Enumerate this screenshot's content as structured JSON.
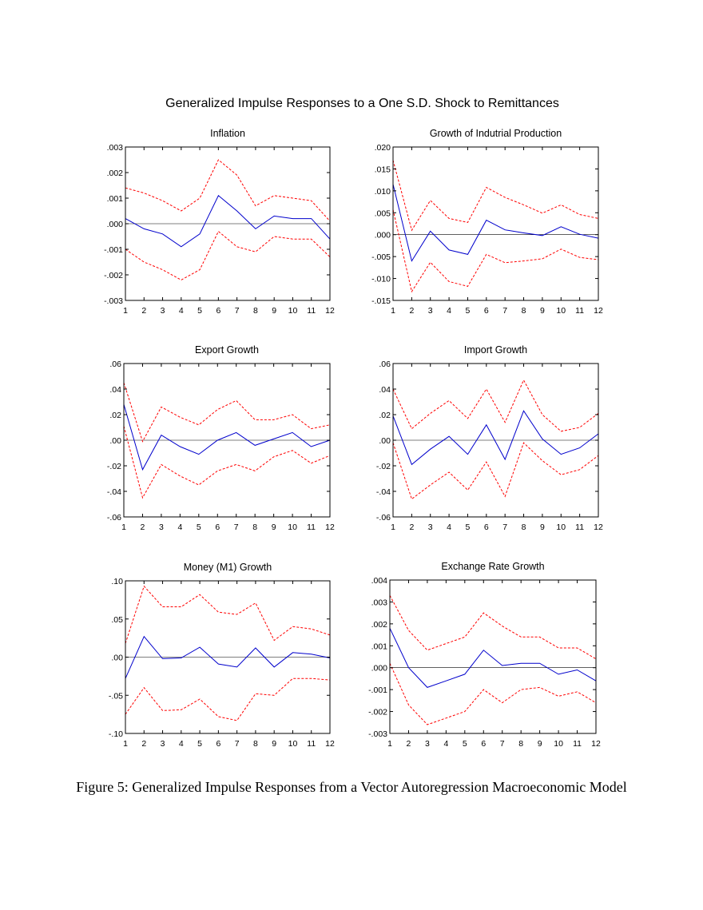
{
  "figure": {
    "title": "Generalized Impulse Responses to a One S.D. Shock to Remittances",
    "caption": "Figure 5: Generalized Impulse Responses from a Vector Autoregression Macroeconomic Model"
  },
  "chart_data": [
    {
      "type": "line",
      "title": "Inflation",
      "x": [
        1,
        2,
        3,
        4,
        5,
        6,
        7,
        8,
        9,
        10,
        11,
        12
      ],
      "ylim": [
        -0.003,
        0.003
      ],
      "yticks": [
        0.003,
        0.002,
        0.001,
        0.0,
        -0.001,
        -0.002,
        -0.003
      ],
      "ytick_labels": [
        ".003",
        ".002",
        ".001",
        ".000",
        "-.001",
        "-.002",
        "-.003"
      ],
      "series": [
        {
          "role": "response",
          "color": "#0000cc",
          "style": "solid",
          "values": [
            0.0002,
            -0.0002,
            -0.0004,
            -0.0009,
            -0.0004,
            0.0011,
            0.0005,
            -0.0002,
            0.0003,
            0.0002,
            0.0002,
            -0.0006
          ]
        },
        {
          "role": "upper",
          "color": "#ff0000",
          "style": "dashed",
          "values": [
            0.0014,
            0.0012,
            0.0009,
            0.0005,
            0.001,
            0.0025,
            0.0019,
            0.0007,
            0.0011,
            0.001,
            0.0009,
            0.0001
          ]
        },
        {
          "role": "lower",
          "color": "#ff0000",
          "style": "dashed",
          "values": [
            -0.001,
            -0.0015,
            -0.0018,
            -0.0022,
            -0.0018,
            -0.0003,
            -0.0009,
            -0.0011,
            -0.0005,
            -0.0006,
            -0.0006,
            -0.0013
          ]
        }
      ]
    },
    {
      "type": "line",
      "title": "Growth of Indutrial Production",
      "x": [
        1,
        2,
        3,
        4,
        5,
        6,
        7,
        8,
        9,
        10,
        11,
        12
      ],
      "ylim": [
        -0.015,
        0.02
      ],
      "yticks": [
        0.02,
        0.015,
        0.01,
        0.005,
        0.0,
        -0.005,
        -0.01,
        -0.015
      ],
      "ytick_labels": [
        ".020",
        ".015",
        ".010",
        ".005",
        ".000",
        "-.005",
        "-.010",
        "-.015"
      ],
      "series": [
        {
          "role": "response",
          "color": "#0000cc",
          "style": "solid",
          "values": [
            0.0115,
            -0.006,
            0.0008,
            -0.0035,
            -0.0045,
            0.0033,
            0.0011,
            0.0004,
            -0.0002,
            0.0018,
            0.0001,
            -0.0008
          ]
        },
        {
          "role": "upper",
          "color": "#ff0000",
          "style": "dashed",
          "values": [
            0.017,
            0.001,
            0.0078,
            0.0037,
            0.0028,
            0.0108,
            0.0085,
            0.0068,
            0.0049,
            0.0068,
            0.0046,
            0.0037
          ]
        },
        {
          "role": "lower",
          "color": "#ff0000",
          "style": "dashed",
          "values": [
            0.0057,
            -0.013,
            -0.0063,
            -0.0107,
            -0.0118,
            -0.0045,
            -0.0064,
            -0.006,
            -0.0055,
            -0.0033,
            -0.0052,
            -0.0057
          ]
        }
      ]
    },
    {
      "type": "line",
      "title": "Export Growth",
      "x": [
        1,
        2,
        3,
        4,
        5,
        6,
        7,
        8,
        9,
        10,
        11,
        12
      ],
      "ylim": [
        -0.06,
        0.06
      ],
      "yticks": [
        0.06,
        0.04,
        0.02,
        0.0,
        -0.02,
        -0.04,
        -0.06
      ],
      "ytick_labels": [
        ".06",
        ".04",
        ".02",
        ".00",
        "-.02",
        "-.04",
        "-.06"
      ],
      "series": [
        {
          "role": "response",
          "color": "#0000cc",
          "style": "solid",
          "values": [
            0.028,
            -0.023,
            0.004,
            -0.005,
            -0.011,
            0.0,
            0.006,
            -0.004,
            0.001,
            0.006,
            -0.005,
            0.0
          ]
        },
        {
          "role": "upper",
          "color": "#ff0000",
          "style": "dashed",
          "values": [
            0.045,
            -0.001,
            0.026,
            0.018,
            0.012,
            0.024,
            0.031,
            0.016,
            0.016,
            0.02,
            0.009,
            0.012
          ]
        },
        {
          "role": "lower",
          "color": "#ff0000",
          "style": "dashed",
          "values": [
            0.011,
            -0.045,
            -0.019,
            -0.028,
            -0.035,
            -0.024,
            -0.019,
            -0.024,
            -0.013,
            -0.008,
            -0.018,
            -0.012
          ]
        }
      ]
    },
    {
      "type": "line",
      "title": "Import Growth",
      "x": [
        1,
        2,
        3,
        4,
        5,
        6,
        7,
        8,
        9,
        10,
        11,
        12
      ],
      "ylim": [
        -0.06,
        0.06
      ],
      "yticks": [
        0.06,
        0.04,
        0.02,
        0.0,
        -0.02,
        -0.04,
        -0.06
      ],
      "ytick_labels": [
        ".06",
        ".04",
        ".02",
        ".00",
        "-.02",
        "-.04",
        "-.06"
      ],
      "series": [
        {
          "role": "response",
          "color": "#0000cc",
          "style": "solid",
          "values": [
            0.019,
            -0.019,
            -0.007,
            0.003,
            -0.011,
            0.012,
            -0.015,
            0.023,
            0.001,
            -0.011,
            -0.006,
            0.005
          ]
        },
        {
          "role": "upper",
          "color": "#ff0000",
          "style": "dashed",
          "values": [
            0.04,
            0.009,
            0.021,
            0.031,
            0.017,
            0.04,
            0.014,
            0.047,
            0.02,
            0.007,
            0.01,
            0.021
          ]
        },
        {
          "role": "lower",
          "color": "#ff0000",
          "style": "dashed",
          "values": [
            -0.002,
            -0.046,
            -0.035,
            -0.025,
            -0.039,
            -0.017,
            -0.044,
            -0.002,
            -0.016,
            -0.027,
            -0.023,
            -0.012
          ]
        }
      ]
    },
    {
      "type": "line",
      "title": "Money (M1) Growth",
      "x": [
        1,
        2,
        3,
        4,
        5,
        6,
        7,
        8,
        9,
        10,
        11,
        12
      ],
      "ylim": [
        -0.1,
        0.1
      ],
      "yticks": [
        0.1,
        0.05,
        0.0,
        -0.05,
        -0.1
      ],
      "ytick_labels": [
        ".10",
        ".05",
        ".00",
        "-.05",
        "-.10"
      ],
      "series": [
        {
          "role": "response",
          "color": "#0000cc",
          "style": "solid",
          "values": [
            -0.028,
            0.027,
            -0.002,
            -0.001,
            0.013,
            -0.009,
            -0.013,
            0.012,
            -0.013,
            0.006,
            0.004,
            -0.001
          ]
        },
        {
          "role": "upper",
          "color": "#ff0000",
          "style": "dashed",
          "values": [
            0.018,
            0.093,
            0.066,
            0.066,
            0.082,
            0.059,
            0.056,
            0.071,
            0.022,
            0.04,
            0.037,
            0.029
          ]
        },
        {
          "role": "lower",
          "color": "#ff0000",
          "style": "dashed",
          "values": [
            -0.075,
            -0.04,
            -0.07,
            -0.069,
            -0.055,
            -0.078,
            -0.083,
            -0.048,
            -0.05,
            -0.028,
            -0.028,
            -0.03
          ]
        }
      ]
    },
    {
      "type": "line",
      "title": "Exchange Rate Growth",
      "x": [
        1,
        2,
        3,
        4,
        5,
        6,
        7,
        8,
        9,
        10,
        11,
        12
      ],
      "ylim": [
        -0.003,
        0.004
      ],
      "yticks": [
        0.004,
        0.003,
        0.002,
        0.001,
        0.0,
        -0.001,
        -0.002,
        -0.003
      ],
      "ytick_labels": [
        ".004",
        ".003",
        ".002",
        ".001",
        ".000",
        "-.001",
        "-.002",
        "-.003"
      ],
      "series": [
        {
          "role": "response",
          "color": "#0000cc",
          "style": "solid",
          "values": [
            0.0018,
            0.0,
            -0.0009,
            -0.0006,
            -0.0003,
            0.0008,
            0.0001,
            0.0002,
            0.0002,
            -0.0003,
            -0.0001,
            -0.0006
          ]
        },
        {
          "role": "upper",
          "color": "#ff0000",
          "style": "dashed",
          "values": [
            0.0033,
            0.0017,
            0.0008,
            0.0011,
            0.0014,
            0.0025,
            0.0019,
            0.0014,
            0.0014,
            0.0009,
            0.0009,
            0.0004
          ]
        },
        {
          "role": "lower",
          "color": "#ff0000",
          "style": "dashed",
          "values": [
            0.0002,
            -0.0017,
            -0.0026,
            -0.0023,
            -0.002,
            -0.001,
            -0.0016,
            -0.001,
            -0.0009,
            -0.0013,
            -0.0011,
            -0.0016
          ]
        }
      ]
    }
  ]
}
